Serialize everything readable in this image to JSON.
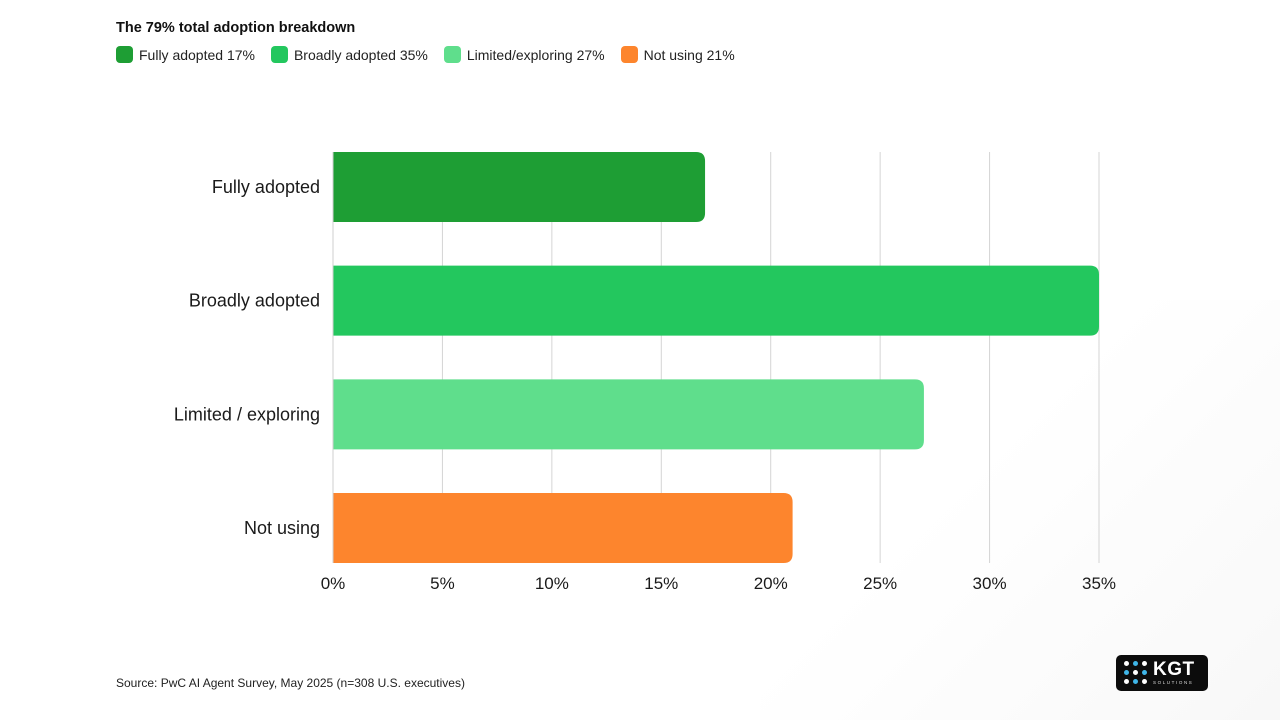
{
  "header": {
    "title": "The 79% total adoption breakdown"
  },
  "legend": [
    {
      "label": "Fully adopted 17%",
      "color": "#1e9e34"
    },
    {
      "label": "Broadly adopted 35%",
      "color": "#23c75e"
    },
    {
      "label": "Limited/exploring 27%",
      "color": "#5fde8c"
    },
    {
      "label": "Not using 21%",
      "color": "#fd852d"
    }
  ],
  "chart_data": {
    "type": "bar",
    "orientation": "horizontal",
    "title": "The 79% total adoption breakdown",
    "categories": [
      "Fully adopted",
      "Broadly adopted",
      "Limited / exploring",
      "Not using"
    ],
    "values": [
      17,
      35,
      27,
      21
    ],
    "colors": [
      "#1e9e34",
      "#23c75e",
      "#5fde8c",
      "#fd852d"
    ],
    "xlim": [
      0,
      35
    ],
    "xticks": [
      0,
      5,
      10,
      15,
      20,
      25,
      30,
      35
    ],
    "xtick_labels": [
      "0%",
      "5%",
      "10%",
      "15%",
      "20%",
      "25%",
      "30%",
      "35%"
    ],
    "grid": "vertical",
    "legend_position": "top-left",
    "xlabel": "",
    "ylabel": ""
  },
  "footer": {
    "source": "Source: PwC AI Agent Survey, May 2025 (n=308 U.S. executives)"
  },
  "logo": {
    "main": "KGT",
    "sub": "SOLUTIONS"
  }
}
